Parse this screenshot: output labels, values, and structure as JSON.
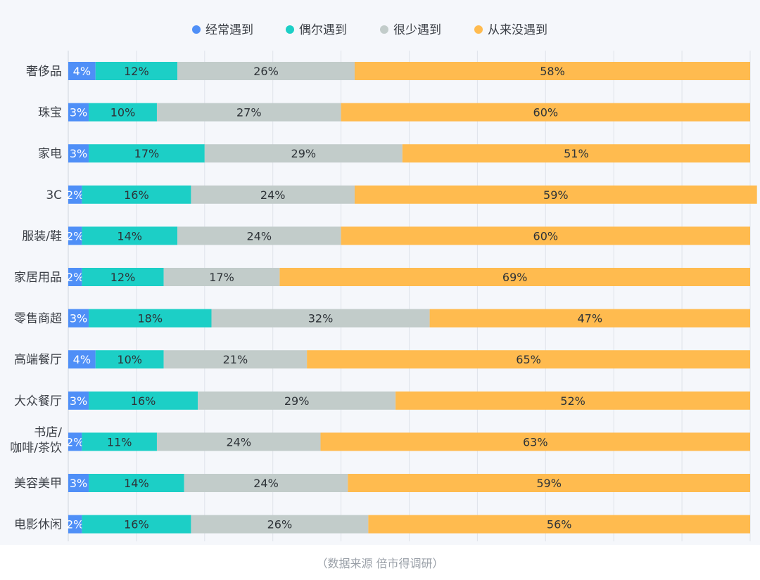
{
  "chart_data": {
    "type": "bar",
    "orientation": "horizontal",
    "stacked": true,
    "value_unit": "%",
    "xlim": [
      0,
      100
    ],
    "grid": true,
    "legend_position": "top-center",
    "categories": [
      "奢侈品",
      "珠宝",
      "家电",
      "3C",
      "服装/鞋",
      "家居用品",
      "零售商超",
      "高端餐厅",
      "大众餐厅",
      "书店/咖啡/茶饮",
      "美容美甲",
      "电影休闲"
    ],
    "category_display_lines": [
      [
        "奢侈品"
      ],
      [
        "珠宝"
      ],
      [
        "家电"
      ],
      [
        "3C"
      ],
      [
        "服装/鞋"
      ],
      [
        "家居用品"
      ],
      [
        "零售商超"
      ],
      [
        "高端餐厅"
      ],
      [
        "大众餐厅"
      ],
      [
        "书店/",
        "咖啡/茶饮"
      ],
      [
        "美容美甲"
      ],
      [
        "电影休闲"
      ]
    ],
    "series": [
      {
        "name": "经常遇到",
        "color": "#4f8ff7",
        "label_color": "#ffffff",
        "values": [
          4,
          3,
          3,
          2,
          2,
          2,
          3,
          4,
          3,
          2,
          3,
          2
        ]
      },
      {
        "name": "偶尔遇到",
        "color": "#1ccfc6",
        "label_color": "#2e3338",
        "values": [
          12,
          10,
          17,
          16,
          14,
          12,
          18,
          10,
          16,
          11,
          14,
          16
        ]
      },
      {
        "name": "很少遇到",
        "color": "#c2ccca",
        "label_color": "#2e3338",
        "values": [
          26,
          27,
          29,
          24,
          24,
          17,
          32,
          21,
          29,
          24,
          24,
          26
        ]
      },
      {
        "name": "从来没遇到",
        "color": "#ffbb4f",
        "label_color": "#2e3338",
        "values": [
          58,
          60,
          51,
          59,
          60,
          69,
          47,
          65,
          52,
          63,
          59,
          56
        ]
      }
    ]
  },
  "source_note": "（数据来源  倍市得调研）"
}
